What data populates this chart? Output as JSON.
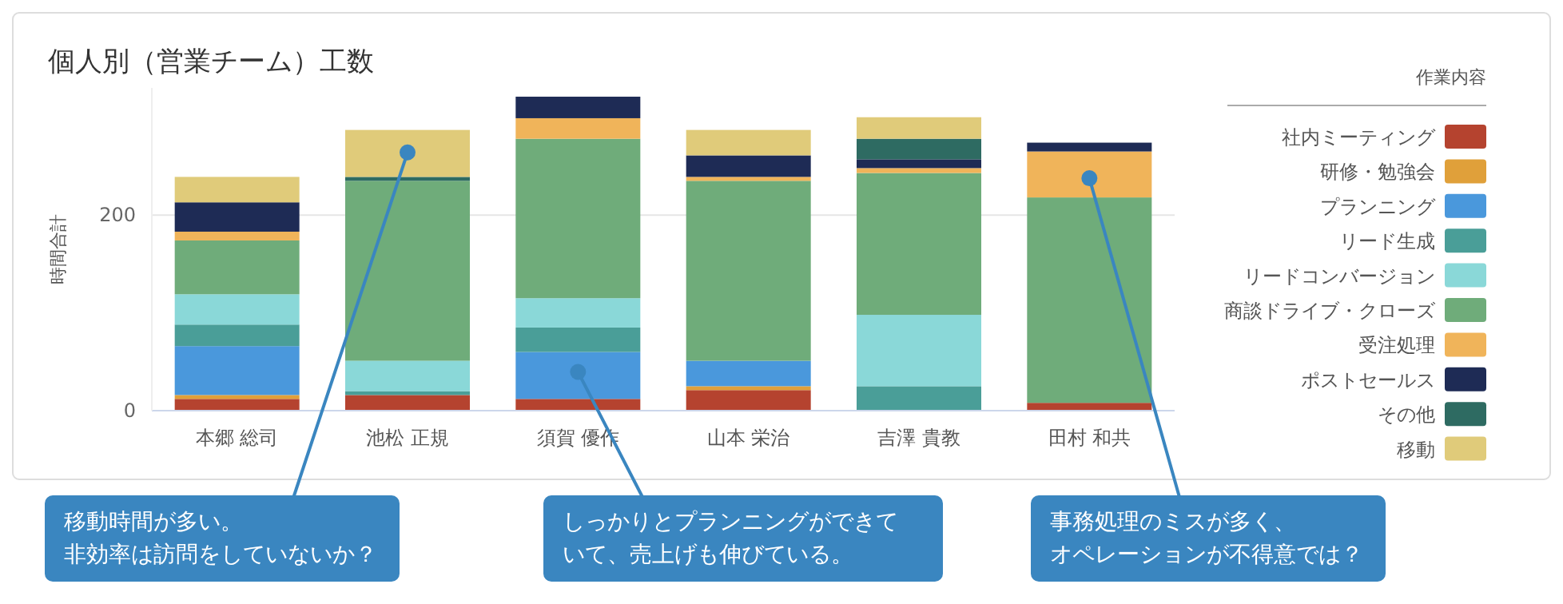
{
  "chart_data": {
    "type": "bar",
    "stacked": true,
    "title": "個人別（営業チーム）工数",
    "ylabel": "時間合計",
    "legend_title": "作業内容",
    "legend": "right",
    "grid": "y",
    "categories": [
      "本郷 総司",
      "池松 正規",
      "須賀 優作",
      "山本 栄治",
      "吉澤 貴教",
      "田村 和共"
    ],
    "ylim": [
      0,
      330
    ],
    "yticks": [
      0,
      200
    ],
    "series": [
      {
        "name": "社内ミーティング",
        "color": "#b5432f",
        "values": [
          12,
          16,
          12,
          21,
          null,
          8
        ]
      },
      {
        "name": "研修・勉強会",
        "color": "#e0a03a",
        "values": [
          4,
          null,
          null,
          4,
          null,
          null
        ]
      },
      {
        "name": "プランニング",
        "color": "#4a98dc",
        "values": [
          50,
          null,
          48,
          26,
          null,
          null
        ]
      },
      {
        "name": "リード生成",
        "color": "#4a9e98",
        "values": [
          22,
          4,
          25,
          null,
          25,
          null
        ]
      },
      {
        "name": "リードコンバージョン",
        "color": "#8ad8d8",
        "values": [
          31,
          31,
          30,
          null,
          73,
          null
        ]
      },
      {
        "name": "商談ドライブ・クローズ",
        "color": "#6fac7a",
        "values": [
          55,
          184,
          163,
          184,
          145,
          210
        ]
      },
      {
        "name": "受注処理",
        "color": "#f0b45a",
        "values": [
          9,
          null,
          21,
          4,
          5,
          47
        ]
      },
      {
        "name": "ポストセールス",
        "color": "#1e2b55",
        "values": [
          30,
          null,
          22,
          22,
          9,
          9
        ]
      },
      {
        "name": "その他",
        "color": "#2e6b62",
        "values": [
          null,
          4,
          null,
          null,
          21,
          null
        ]
      },
      {
        "name": "移動",
        "color": "#e0cb7a",
        "values": [
          26,
          48,
          null,
          26,
          22,
          null
        ]
      }
    ],
    "annotations": [
      "移動時間が多い。非効率は訪問をしていないか？",
      "しっかりとプランニングができていて、売上げも伸びている。",
      "事務処理のミスが多く、オペレーションが不得意では？"
    ]
  }
}
